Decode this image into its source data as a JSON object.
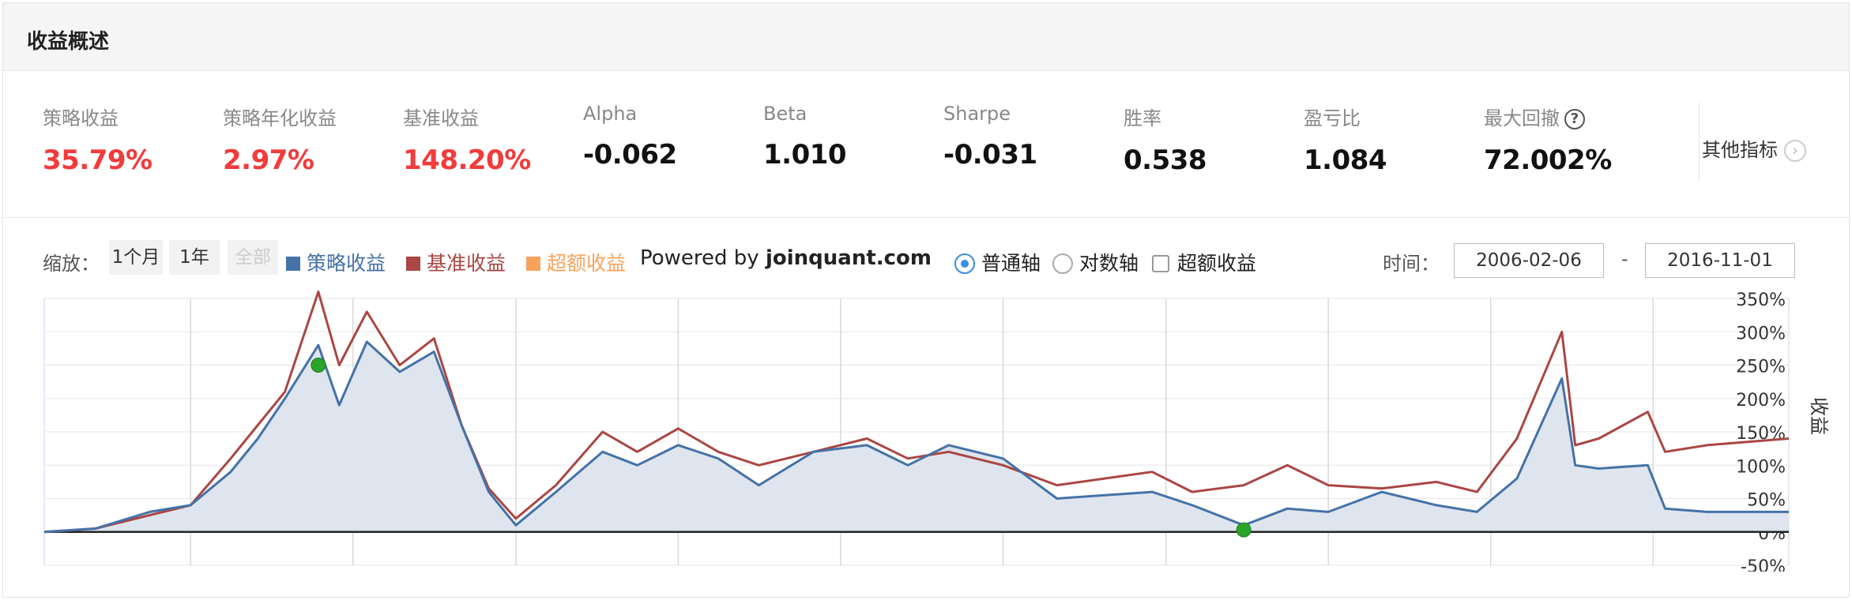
{
  "header": {
    "title": "收益概述"
  },
  "metrics": [
    {
      "label": "策略收益",
      "value": "35.79%",
      "color": "red"
    },
    {
      "label": "策略年化收益",
      "value": "2.97%",
      "color": "red"
    },
    {
      "label": "基准收益",
      "value": "148.20%",
      "color": "red"
    },
    {
      "label": "Alpha",
      "value": "-0.062",
      "color": "black"
    },
    {
      "label": "Beta",
      "value": "1.010",
      "color": "black"
    },
    {
      "label": "Sharpe",
      "value": "-0.031",
      "color": "black"
    },
    {
      "label": "胜率",
      "value": "0.538",
      "color": "black"
    },
    {
      "label": "盈亏比",
      "value": "1.084",
      "color": "black"
    },
    {
      "label": "最大回撤",
      "value": "72.002%",
      "color": "black",
      "help_icon": "question-circle-icon"
    }
  ],
  "other_metrics": {
    "label": "其他指标",
    "icon": "chevron-right-icon"
  },
  "toolbar": {
    "zoom_label": "缩放：",
    "zoom_buttons": [
      {
        "label": "1个月",
        "disabled": false
      },
      {
        "label": "1年",
        "disabled": false
      },
      {
        "label": "全部",
        "disabled": true
      }
    ],
    "legend": [
      {
        "label": "策略收益",
        "color": "#4572a7"
      },
      {
        "label": "基准收益",
        "color": "#aa4643"
      },
      {
        "label": "超额收益",
        "color": "#f7a35c"
      }
    ],
    "powered_prefix": "Powered by ",
    "powered_site": "joinquant.com",
    "axis_options": [
      {
        "label": "普通轴",
        "selected": true
      },
      {
        "label": "对数轴",
        "selected": false
      }
    ],
    "excess_checkbox": {
      "label": "超额收益",
      "checked": false
    },
    "time_label": "时间：",
    "date_from": "2006-02-06",
    "date_to": "2016-11-01",
    "date_sep": "-"
  },
  "chart_data": {
    "type": "line",
    "ylabel": "收益",
    "ylim": [
      -50,
      350
    ],
    "yticks": [
      -50,
      0,
      50,
      100,
      150,
      200,
      250,
      300,
      350
    ],
    "ytick_labels": [
      "-50%",
      "0%",
      "50%",
      "100%",
      "150%",
      "200%",
      "250%",
      "300%",
      "350%"
    ],
    "xlim": [
      "2006-02-06",
      "2016-11-01"
    ],
    "x": [
      "2006-02-06",
      "2006-06-01",
      "2006-10-01",
      "2007-01-01",
      "2007-04-01",
      "2007-06-01",
      "2007-08-01",
      "2007-10-15",
      "2007-12-01",
      "2008-02-01",
      "2008-04-15",
      "2008-07-01",
      "2008-09-01",
      "2008-11-01",
      "2009-01-01",
      "2009-04-01",
      "2009-07-15",
      "2009-10-01",
      "2010-01-01",
      "2010-04-01",
      "2010-07-01",
      "2010-11-01",
      "2011-03-01",
      "2011-06-01",
      "2011-09-01",
      "2012-01-01",
      "2012-05-01",
      "2012-12-01",
      "2013-03-01",
      "2013-06-25",
      "2013-10-01",
      "2014-01-01",
      "2014-05-01",
      "2014-09-01",
      "2014-12-01",
      "2015-03-01",
      "2015-06-10",
      "2015-07-10",
      "2015-09-01",
      "2015-12-20",
      "2016-01-28",
      "2016-05-01",
      "2016-11-01"
    ],
    "series": [
      {
        "name": "策略收益",
        "color": "#4572a7",
        "fill": "#dfe5ee",
        "values": [
          0,
          5,
          30,
          40,
          90,
          140,
          200,
          280,
          190,
          285,
          240,
          270,
          160,
          60,
          10,
          60,
          120,
          100,
          130,
          110,
          70,
          120,
          130,
          100,
          130,
          110,
          50,
          60,
          40,
          10,
          35,
          30,
          60,
          40,
          30,
          80,
          230,
          100,
          95,
          100,
          35,
          30,
          30
        ]
      },
      {
        "name": "基准收益",
        "color": "#aa4643",
        "values": [
          0,
          5,
          25,
          40,
          110,
          160,
          210,
          360,
          250,
          330,
          250,
          290,
          160,
          65,
          20,
          70,
          150,
          120,
          155,
          120,
          100,
          120,
          140,
          110,
          120,
          100,
          70,
          90,
          60,
          70,
          100,
          70,
          65,
          75,
          60,
          140,
          300,
          130,
          140,
          180,
          120,
          130,
          140
        ]
      }
    ],
    "markers": [
      {
        "x": "2007-10-15",
        "y": 250,
        "color": "#2aa52a"
      },
      {
        "x": "2013-06-25",
        "y": 3,
        "color": "#2aa52a"
      }
    ]
  }
}
